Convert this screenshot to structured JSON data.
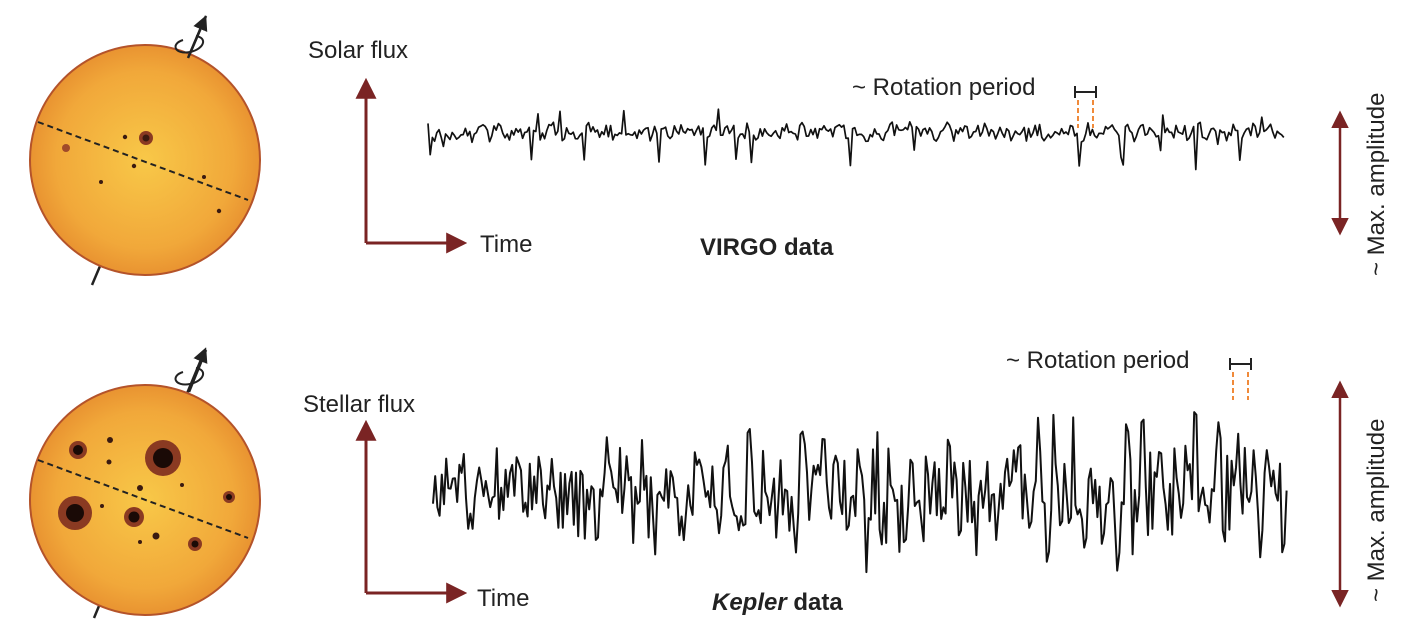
{
  "panels": [
    {
      "flux_label": "Solar flux",
      "time_label": "Time",
      "rotation_label": "~ Rotation period",
      "amplitude_label": "~ Max. amplitude",
      "data_label_italic": "",
      "data_label_rest": "VIRGO data",
      "spot_level": "low",
      "curve_amplitude": "low"
    },
    {
      "flux_label": "Stellar flux",
      "time_label": "Time",
      "rotation_label": "~ Rotation period",
      "amplitude_label": "~ Max. amplitude",
      "data_label_italic": "Kepler",
      "data_label_rest": " data",
      "spot_level": "high",
      "curve_amplitude": "high"
    }
  ],
  "colors": {
    "axis": "#7a2424",
    "curve": "#111111",
    "rotation_marker": "#f08a3a",
    "star_center": "#f7c445",
    "star_edge": "#e88a2c",
    "star_outline": "#b4532a"
  }
}
